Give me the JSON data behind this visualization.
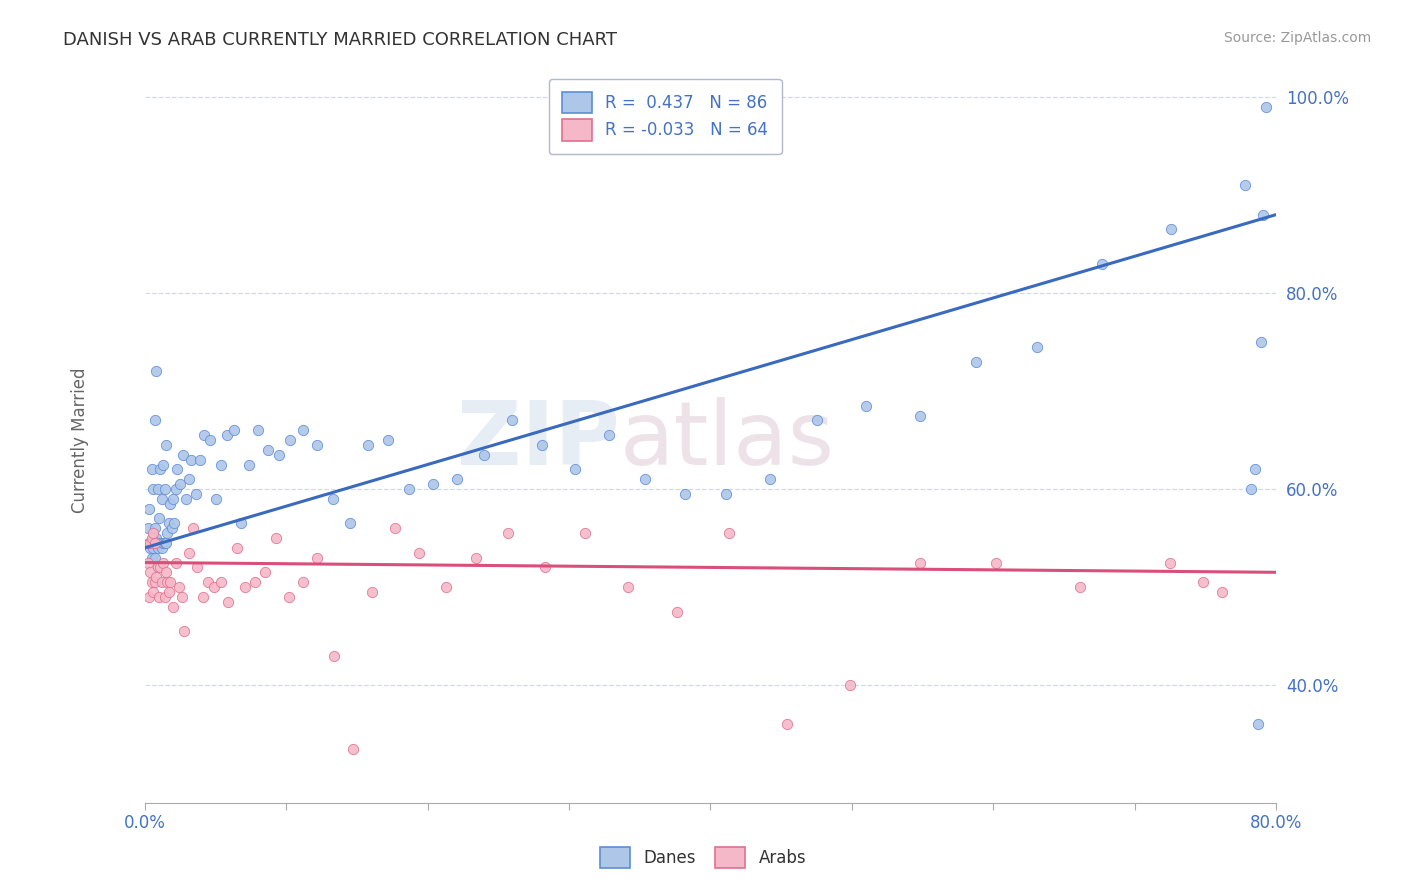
{
  "title": "DANISH VS ARAB CURRENTLY MARRIED CORRELATION CHART",
  "source": "Source: ZipAtlas.com",
  "ylabel": "Currently Married",
  "legend_blue_label": "Danes",
  "legend_pink_label": "Arabs",
  "r_blue": "0.437",
  "n_blue": "86",
  "r_pink": "-0.033",
  "n_pink": "64",
  "blue_color": "#aec6e8",
  "pink_color": "#f5b8c8",
  "blue_line_color": "#3a6abf",
  "pink_line_color": "#d94f7a",
  "blue_edge_color": "#5b8dd9",
  "pink_edge_color": "#e07090",
  "danes_x": [
    0.002,
    0.003,
    0.003,
    0.004,
    0.005,
    0.005,
    0.006,
    0.006,
    0.007,
    0.007,
    0.007,
    0.008,
    0.008,
    0.009,
    0.009,
    0.01,
    0.01,
    0.011,
    0.011,
    0.012,
    0.012,
    0.013,
    0.013,
    0.014,
    0.014,
    0.015,
    0.015,
    0.016,
    0.017,
    0.018,
    0.019,
    0.02,
    0.021,
    0.022,
    0.023,
    0.025,
    0.027,
    0.029,
    0.031,
    0.033,
    0.036,
    0.039,
    0.042,
    0.046,
    0.05,
    0.054,
    0.058,
    0.063,
    0.068,
    0.074,
    0.08,
    0.087,
    0.095,
    0.103,
    0.112,
    0.122,
    0.133,
    0.145,
    0.158,
    0.172,
    0.187,
    0.204,
    0.221,
    0.24,
    0.26,
    0.281,
    0.304,
    0.328,
    0.354,
    0.382,
    0.411,
    0.442,
    0.475,
    0.51,
    0.548,
    0.588,
    0.631,
    0.677,
    0.726,
    0.778,
    0.782,
    0.785,
    0.787,
    0.789,
    0.791,
    0.793
  ],
  "danes_y": [
    0.56,
    0.545,
    0.58,
    0.54,
    0.53,
    0.62,
    0.54,
    0.6,
    0.53,
    0.56,
    0.67,
    0.55,
    0.72,
    0.54,
    0.6,
    0.545,
    0.57,
    0.545,
    0.62,
    0.54,
    0.59,
    0.545,
    0.625,
    0.545,
    0.6,
    0.545,
    0.645,
    0.555,
    0.565,
    0.585,
    0.56,
    0.59,
    0.565,
    0.6,
    0.62,
    0.605,
    0.635,
    0.59,
    0.61,
    0.63,
    0.595,
    0.63,
    0.655,
    0.65,
    0.59,
    0.625,
    0.655,
    0.66,
    0.565,
    0.625,
    0.66,
    0.64,
    0.635,
    0.65,
    0.66,
    0.645,
    0.59,
    0.565,
    0.645,
    0.65,
    0.6,
    0.605,
    0.61,
    0.635,
    0.67,
    0.645,
    0.62,
    0.655,
    0.61,
    0.595,
    0.595,
    0.61,
    0.67,
    0.685,
    0.675,
    0.73,
    0.745,
    0.83,
    0.865,
    0.91,
    0.6,
    0.62,
    0.36,
    0.75,
    0.88,
    0.99
  ],
  "arabs_x": [
    0.002,
    0.003,
    0.003,
    0.004,
    0.004,
    0.005,
    0.005,
    0.006,
    0.006,
    0.007,
    0.007,
    0.008,
    0.009,
    0.01,
    0.011,
    0.012,
    0.013,
    0.014,
    0.015,
    0.016,
    0.017,
    0.018,
    0.02,
    0.022,
    0.024,
    0.026,
    0.028,
    0.031,
    0.034,
    0.037,
    0.041,
    0.045,
    0.049,
    0.054,
    0.059,
    0.065,
    0.071,
    0.078,
    0.085,
    0.093,
    0.102,
    0.112,
    0.122,
    0.134,
    0.147,
    0.161,
    0.177,
    0.194,
    0.213,
    0.234,
    0.257,
    0.283,
    0.311,
    0.342,
    0.376,
    0.413,
    0.454,
    0.499,
    0.548,
    0.602,
    0.661,
    0.725,
    0.748,
    0.762
  ],
  "arabs_y": [
    0.525,
    0.49,
    0.545,
    0.515,
    0.545,
    0.505,
    0.55,
    0.495,
    0.555,
    0.505,
    0.545,
    0.51,
    0.52,
    0.49,
    0.52,
    0.505,
    0.525,
    0.49,
    0.515,
    0.505,
    0.495,
    0.505,
    0.48,
    0.525,
    0.5,
    0.49,
    0.455,
    0.535,
    0.56,
    0.52,
    0.49,
    0.505,
    0.5,
    0.505,
    0.485,
    0.54,
    0.5,
    0.505,
    0.515,
    0.55,
    0.49,
    0.505,
    0.53,
    0.43,
    0.335,
    0.495,
    0.56,
    0.535,
    0.5,
    0.53,
    0.555,
    0.52,
    0.555,
    0.5,
    0.475,
    0.555,
    0.36,
    0.4,
    0.525,
    0.525,
    0.5,
    0.525,
    0.505,
    0.495
  ],
  "xlim": [
    0.0,
    0.8
  ],
  "ylim": [
    0.28,
    1.02
  ],
  "x_ticks": [
    0.0,
    0.1,
    0.2,
    0.3,
    0.4,
    0.5,
    0.6,
    0.7,
    0.8
  ],
  "y_ticks": [
    0.4,
    0.6,
    0.8,
    1.0
  ]
}
